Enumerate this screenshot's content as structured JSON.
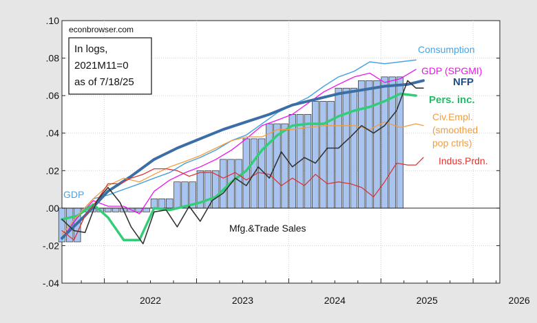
{
  "chart_data": {
    "type": "line",
    "source_label": "econbrowser.com",
    "note_lines": [
      "In logs,",
      "2021M11=0",
      "as of 7/18/25"
    ],
    "xlim": [
      2021.54,
      2026.29
    ],
    "ylim": [
      -0.04,
      0.1
    ],
    "y_ticks": [
      {
        "v": 0.1,
        "label": ".10"
      },
      {
        "v": 0.08,
        "label": ".08"
      },
      {
        "v": 0.06,
        "label": ".06"
      },
      {
        "v": 0.04,
        "label": ".04"
      },
      {
        "v": 0.02,
        "label": ".02"
      },
      {
        "v": 0.0,
        "label": ".00"
      },
      {
        "v": -0.02,
        "label": "-.02"
      },
      {
        "v": -0.04,
        "label": "-.04"
      }
    ],
    "x_ticks": [
      {
        "v": 2022.0,
        "label": "2022"
      },
      {
        "v": 2023.0,
        "label": "2023"
      },
      {
        "v": 2024.0,
        "label": "2024"
      },
      {
        "v": 2025.0,
        "label": "2025"
      },
      {
        "v": 2026.0,
        "label": "2026"
      }
    ],
    "grid": true,
    "bars": {
      "name": "GDP",
      "color": "#a9c5ef",
      "x": [
        2021.54,
        2021.79,
        2022.04,
        2022.29,
        2022.54,
        2022.79,
        2023.04,
        2023.29,
        2023.54,
        2023.79,
        2024.04,
        2024.29,
        2024.54,
        2024.79,
        2025.04
      ],
      "values": [
        -0.018,
        -0.002,
        -0.002,
        -0.002,
        0.005,
        0.014,
        0.02,
        0.026,
        0.037,
        0.045,
        0.05,
        0.057,
        0.064,
        0.068,
        0.07
      ]
    },
    "series": [
      {
        "name": "Consumption",
        "color": "#4aa3e0",
        "width": 1.5,
        "x": [
          2021.54,
          2021.71,
          2021.88,
          2022.04,
          2022.21,
          2022.38,
          2022.54,
          2022.71,
          2022.88,
          2023.04,
          2023.21,
          2023.38,
          2023.54,
          2023.71,
          2023.88,
          2024.04,
          2024.21,
          2024.38,
          2024.54,
          2024.71,
          2024.88,
          2025.04,
          2025.21,
          2025.38
        ],
        "values": [
          -0.017,
          -0.004,
          0.005,
          0.007,
          0.01,
          0.013,
          0.016,
          0.019,
          0.024,
          0.027,
          0.031,
          0.036,
          0.039,
          0.045,
          0.051,
          0.055,
          0.059,
          0.065,
          0.07,
          0.073,
          0.078,
          0.077,
          0.078,
          0.079
        ]
      },
      {
        "name": "GDP (SPGMI)",
        "color": "#ee11ee",
        "width": 1.3,
        "x": [
          2021.54,
          2021.71,
          2021.88,
          2022.04,
          2022.21,
          2022.38,
          2022.54,
          2022.71,
          2022.88,
          2023.04,
          2023.21,
          2023.38,
          2023.54,
          2023.71,
          2023.88,
          2024.04,
          2024.21,
          2024.38,
          2024.54,
          2024.71,
          2024.88,
          2025.04,
          2025.21,
          2025.38
        ],
        "values": [
          -0.016,
          -0.005,
          0.004,
          0.001,
          0.001,
          -0.003,
          0.009,
          0.015,
          0.019,
          0.022,
          0.026,
          0.031,
          0.037,
          0.044,
          0.047,
          0.05,
          0.056,
          0.062,
          0.066,
          0.07,
          0.072,
          0.067,
          0.069,
          0.074
        ]
      },
      {
        "name": "NFP",
        "color": "#3a6ea5",
        "width": 4,
        "x": [
          2021.54,
          2021.79,
          2022.04,
          2022.29,
          2022.54,
          2022.79,
          2023.04,
          2023.29,
          2023.54,
          2023.79,
          2024.04,
          2024.29,
          2024.54,
          2024.79,
          2025.04,
          2025.29,
          2025.46
        ],
        "values": [
          -0.016,
          -0.004,
          0.009,
          0.017,
          0.026,
          0.032,
          0.037,
          0.042,
          0.046,
          0.05,
          0.055,
          0.058,
          0.061,
          0.063,
          0.065,
          0.066,
          0.068
        ]
      },
      {
        "name": "Pers. inc.",
        "color": "#33cc77",
        "width": 3.5,
        "x": [
          2021.54,
          2021.71,
          2021.88,
          2022.04,
          2022.21,
          2022.38,
          2022.54,
          2022.71,
          2022.88,
          2023.04,
          2023.21,
          2023.38,
          2023.54,
          2023.71,
          2023.88,
          2024.04,
          2024.21,
          2024.38,
          2024.54,
          2024.71,
          2024.88,
          2025.04,
          2025.21,
          2025.38
        ],
        "values": [
          -0.006,
          -0.004,
          0.002,
          -0.005,
          -0.017,
          -0.017,
          0.0,
          -0.001,
          0.001,
          0.003,
          0.006,
          0.014,
          0.02,
          0.031,
          0.039,
          0.044,
          0.045,
          0.045,
          0.049,
          0.052,
          0.054,
          0.057,
          0.061,
          0.06
        ]
      },
      {
        "name": "Civ.Empl. (smoothed pop ctrls)",
        "color": "#f39c3d",
        "width": 1.3,
        "x": [
          2021.54,
          2021.71,
          2021.88,
          2022.04,
          2022.21,
          2022.38,
          2022.54,
          2022.71,
          2022.88,
          2023.04,
          2023.21,
          2023.38,
          2023.54,
          2023.71,
          2023.88,
          2024.04,
          2024.21,
          2024.38,
          2024.54,
          2024.71,
          2024.88,
          2025.04,
          2025.21,
          2025.38,
          2025.46
        ],
        "values": [
          -0.014,
          -0.004,
          0.005,
          0.012,
          0.016,
          0.014,
          0.018,
          0.022,
          0.025,
          0.028,
          0.032,
          0.036,
          0.038,
          0.038,
          0.042,
          0.042,
          0.043,
          0.044,
          0.044,
          0.044,
          0.042,
          0.046,
          0.043,
          0.045,
          0.044
        ]
      },
      {
        "name": "Indus.Prdn.",
        "color": "#dd3333",
        "width": 1.3,
        "x": [
          2021.54,
          2021.67,
          2021.79,
          2021.92,
          2022.04,
          2022.17,
          2022.29,
          2022.42,
          2022.54,
          2022.67,
          2022.79,
          2022.92,
          2023.04,
          2023.17,
          2023.29,
          2023.42,
          2023.54,
          2023.67,
          2023.79,
          2023.92,
          2024.04,
          2024.17,
          2024.29,
          2024.42,
          2024.54,
          2024.67,
          2024.79,
          2024.92,
          2025.04,
          2025.17,
          2025.29,
          2025.38,
          2025.46
        ],
        "values": [
          -0.012,
          -0.017,
          -0.004,
          0.004,
          0.013,
          0.013,
          0.016,
          0.018,
          0.021,
          0.021,
          0.02,
          0.017,
          0.019,
          0.019,
          0.016,
          0.019,
          0.015,
          0.019,
          0.018,
          0.012,
          0.016,
          0.012,
          0.018,
          0.013,
          0.014,
          0.013,
          0.011,
          0.006,
          0.014,
          0.024,
          0.023,
          0.023,
          0.027
        ]
      },
      {
        "name": "Mfg.&Trade Sales",
        "color": "#333333",
        "width": 1.6,
        "x": [
          2021.54,
          2021.67,
          2021.79,
          2021.92,
          2022.04,
          2022.17,
          2022.29,
          2022.42,
          2022.54,
          2022.67,
          2022.79,
          2022.92,
          2023.04,
          2023.17,
          2023.29,
          2023.42,
          2023.54,
          2023.67,
          2023.79,
          2023.92,
          2024.04,
          2024.17,
          2024.29,
          2024.42,
          2024.54,
          2024.67,
          2024.79,
          2024.92,
          2025.04,
          2025.17,
          2025.29,
          2025.38,
          2025.46
        ],
        "values": [
          -0.006,
          -0.012,
          -0.013,
          0.004,
          0.011,
          0.003,
          -0.01,
          -0.019,
          -0.002,
          -0.001,
          -0.01,
          0.001,
          -0.007,
          0.004,
          0.008,
          0.016,
          0.012,
          0.022,
          0.016,
          0.03,
          0.022,
          0.027,
          0.024,
          0.032,
          0.032,
          0.038,
          0.044,
          0.04,
          0.044,
          0.052,
          0.068,
          0.064,
          0.064
        ]
      }
    ],
    "series_labels": [
      {
        "text": "GDP",
        "color": "#4aa3e0",
        "bold": false
      },
      {
        "text": "Consumption",
        "color": "#4aa3e0",
        "bold": false
      },
      {
        "text": "GDP (SPGMI)",
        "color": "#ee11ee",
        "bold": false
      },
      {
        "text": "NFP",
        "color": "#1f4e86",
        "bold": true
      },
      {
        "text": "Pers. inc.",
        "color": "#22bb66",
        "bold": true
      },
      {
        "text": "Civ.Empl.",
        "color": "#f39c3d",
        "bold": false
      },
      {
        "text": "(smoothed",
        "color": "#f39c3d",
        "bold": false
      },
      {
        "text": "pop ctrls)",
        "color": "#f39c3d",
        "bold": false
      },
      {
        "text": "Indus.Prdn.",
        "color": "#dd3333",
        "bold": false
      },
      {
        "text": "Mfg.&Trade Sales",
        "color": "#111111",
        "bold": false
      }
    ]
  }
}
